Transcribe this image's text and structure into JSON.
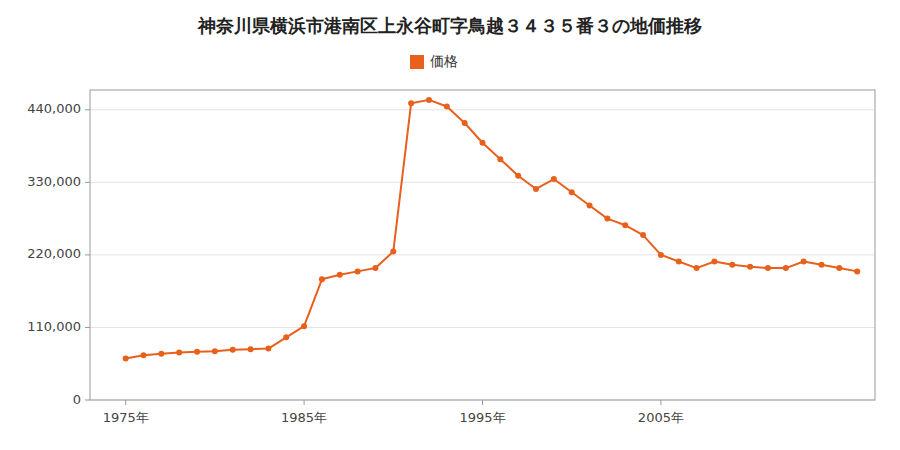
{
  "chart_data": {
    "type": "line",
    "title": "神奈川県横浜市港南区上永谷町字鳥越３４３５番３の地価推移",
    "x": [
      1975,
      1976,
      1977,
      1978,
      1979,
      1980,
      1981,
      1982,
      1983,
      1984,
      1985,
      1986,
      1987,
      1988,
      1989,
      1990,
      1991,
      1992,
      1993,
      1994,
      1995,
      1996,
      1997,
      1998,
      1999,
      2000,
      2001,
      2002,
      2003,
      2004,
      2005,
      2006,
      2007,
      2008,
      2009,
      2010,
      2011,
      2012,
      2013,
      2014,
      2015,
      2016
    ],
    "series": [
      {
        "name": "価格",
        "color": "#E8601C",
        "marker": "circle",
        "values": [
          63000,
          68000,
          70000,
          72000,
          73000,
          74000,
          76000,
          77000,
          78000,
          95000,
          112000,
          183000,
          190000,
          195000,
          200000,
          225000,
          450000,
          455000,
          445000,
          420000,
          390000,
          365000,
          340000,
          320000,
          335000,
          315000,
          295000,
          275000,
          265000,
          250000,
          220000,
          210000,
          200000,
          210000,
          205000,
          202000,
          200000,
          200000,
          210000,
          205000,
          200000,
          195000
        ]
      }
    ],
    "xlim": [
      1973,
      2017
    ],
    "xticks": [
      {
        "value": 1975,
        "label": "1975年"
      },
      {
        "value": 1985,
        "label": "1985年"
      },
      {
        "value": 1995,
        "label": "1995年"
      },
      {
        "value": 2005,
        "label": "2005年"
      }
    ],
    "ylim": [
      0,
      470000
    ],
    "yticks": [
      0,
      {
        "value": 110000,
        "label": "110,000"
      },
      {
        "value": 220000,
        "label": "220,000"
      },
      {
        "value": 330000,
        "label": "330,000"
      },
      {
        "value": 440000,
        "label": "440,000"
      }
    ],
    "grid": true,
    "legend": "top"
  }
}
